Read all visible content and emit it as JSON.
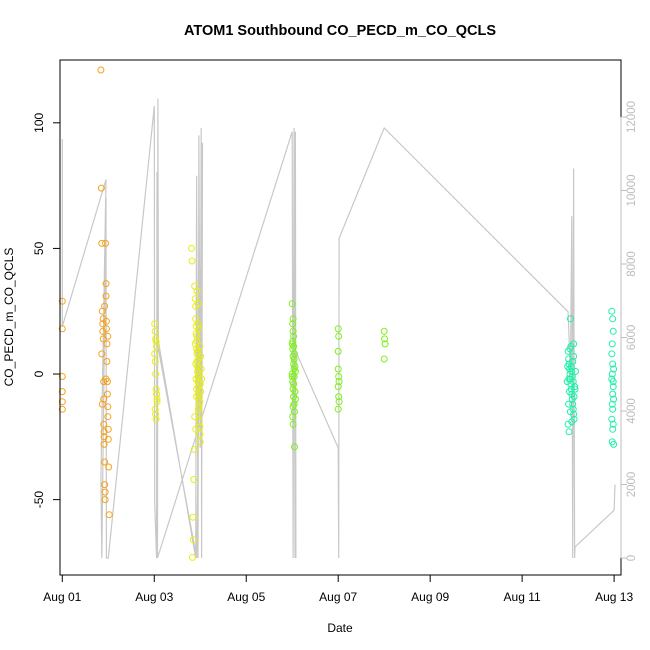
{
  "chart_data": {
    "type": "scatter",
    "title": "ATOM1 Southbound CO_PECD_m_CO_QCLS",
    "xlabel": "Date",
    "ylabel": "CO_PECD_m_CO_QCLS",
    "x_unit": "days in August (Aug 01 = 1)",
    "xlim": [
      0.95,
      13.15
    ],
    "ylim": [
      -80,
      125
    ],
    "x_ticks": [
      {
        "value": 1,
        "label": "Aug 01"
      },
      {
        "value": 3,
        "label": "Aug 03"
      },
      {
        "value": 5,
        "label": "Aug 05"
      },
      {
        "value": 7,
        "label": "Aug 07"
      },
      {
        "value": 9,
        "label": "Aug 09"
      },
      {
        "value": 11,
        "label": "Aug 11"
      },
      {
        "value": 13,
        "label": "Aug 13"
      }
    ],
    "y_ticks": [
      -50,
      0,
      50,
      100
    ],
    "y_tick_labels": [
      "-50",
      "0",
      "50",
      "100"
    ],
    "secondary_axis": {
      "side": "right",
      "ticks": [
        0,
        2000,
        4000,
        6000,
        8000,
        10000,
        12000
      ],
      "tick_labels": [
        "0",
        "2000",
        "4000",
        "6000",
        "8000",
        "10000",
        "12000"
      ],
      "color": "#bebebe"
    },
    "grid": false,
    "point_style": "open-circle",
    "series": [
      {
        "color": "#f7a21b",
        "points": [
          [
            1.0,
            29
          ],
          [
            1.0,
            18
          ],
          [
            1.0,
            -1
          ],
          [
            1.0,
            -7
          ],
          [
            1.0,
            -11
          ],
          [
            1.0,
            -14
          ],
          [
            1.84,
            121
          ],
          [
            1.85,
            74
          ],
          [
            1.86,
            52
          ],
          [
            1.87,
            25
          ],
          [
            1.88,
            20
          ],
          [
            1.88,
            17
          ],
          [
            1.89,
            14
          ],
          [
            1.89,
            22
          ],
          [
            1.9,
            -3
          ],
          [
            1.9,
            -10
          ],
          [
            1.9,
            -20
          ],
          [
            1.91,
            -23
          ],
          [
            1.91,
            -25
          ],
          [
            1.91,
            -28
          ],
          [
            1.92,
            -35
          ],
          [
            1.92,
            -44
          ],
          [
            1.93,
            -47
          ],
          [
            1.93,
            -50
          ],
          [
            1.94,
            52
          ],
          [
            1.95,
            36
          ],
          [
            1.95,
            31
          ],
          [
            1.96,
            21
          ],
          [
            1.96,
            18
          ],
          [
            1.97,
            12
          ],
          [
            1.97,
            5
          ],
          [
            1.98,
            -3
          ],
          [
            1.98,
            -8
          ],
          [
            1.99,
            -13
          ],
          [
            1.99,
            -17
          ],
          [
            2.0,
            -22
          ],
          [
            2.0,
            -26
          ],
          [
            2.01,
            -37
          ],
          [
            2.02,
            -56
          ],
          [
            1.86,
            8
          ],
          [
            1.87,
            -12
          ],
          [
            1.92,
            27
          ],
          [
            1.95,
            -2
          ],
          [
            1.99,
            15
          ]
        ]
      },
      {
        "color": "#e8ee10",
        "points": [
          [
            3.01,
            20
          ],
          [
            3.02,
            17
          ],
          [
            3.03,
            14
          ],
          [
            3.04,
            13
          ],
          [
            3.05,
            11
          ],
          [
            3.02,
            5
          ],
          [
            3.03,
            0
          ],
          [
            3.04,
            -6
          ],
          [
            3.05,
            -8
          ],
          [
            3.06,
            -11
          ],
          [
            3.02,
            -14
          ],
          [
            3.03,
            -16
          ],
          [
            3.04,
            -18
          ],
          [
            3.06,
            -10
          ],
          [
            3.01,
            8
          ],
          [
            3.81,
            50
          ],
          [
            3.82,
            45
          ],
          [
            3.84,
            -57
          ],
          [
            3.85,
            -66
          ],
          [
            3.83,
            -73
          ],
          [
            3.86,
            -42
          ],
          [
            3.87,
            -30
          ],
          [
            3.88,
            35
          ],
          [
            3.89,
            30
          ],
          [
            3.9,
            27
          ],
          [
            3.9,
            22
          ],
          [
            3.91,
            19
          ],
          [
            3.91,
            16
          ],
          [
            3.92,
            13
          ],
          [
            3.92,
            10
          ],
          [
            3.93,
            8
          ],
          [
            3.93,
            5
          ],
          [
            3.94,
            3
          ],
          [
            3.94,
            1
          ],
          [
            3.95,
            -1
          ],
          [
            3.95,
            -3
          ],
          [
            3.96,
            -5
          ],
          [
            3.96,
            -8
          ],
          [
            3.97,
            -10
          ],
          [
            3.97,
            -13
          ],
          [
            3.98,
            -16
          ],
          [
            3.98,
            -19
          ],
          [
            3.99,
            -21
          ],
          [
            3.99,
            -24
          ],
          [
            4.0,
            -27
          ],
          [
            3.89,
            12
          ],
          [
            3.9,
            4
          ],
          [
            3.91,
            -2
          ],
          [
            3.92,
            -6
          ],
          [
            3.93,
            15
          ],
          [
            3.94,
            9
          ],
          [
            3.95,
            20
          ],
          [
            3.96,
            -14
          ],
          [
            3.97,
            6
          ],
          [
            3.98,
            0
          ],
          [
            3.99,
            11
          ],
          [
            4.0,
            -4
          ],
          [
            4.01,
            -7
          ],
          [
            4.02,
            2
          ],
          [
            3.93,
            33
          ],
          [
            3.95,
            28
          ],
          [
            3.97,
            18
          ],
          [
            3.99,
            -11
          ],
          [
            4.01,
            7
          ],
          [
            4.03,
            -2
          ],
          [
            3.88,
            -17
          ],
          [
            3.9,
            -22
          ],
          [
            3.92,
            -9
          ]
        ]
      },
      {
        "color": "#7cf218",
        "points": [
          [
            6.0,
            28
          ],
          [
            6.01,
            20
          ],
          [
            6.02,
            17
          ],
          [
            6.03,
            15
          ],
          [
            6.0,
            12
          ],
          [
            6.01,
            10
          ],
          [
            6.02,
            7
          ],
          [
            6.03,
            4
          ],
          [
            6.04,
            2
          ],
          [
            6.0,
            -1
          ],
          [
            6.01,
            -3
          ],
          [
            6.02,
            -6
          ],
          [
            6.03,
            -9
          ],
          [
            6.04,
            -12
          ],
          [
            6.05,
            -15
          ],
          [
            6.01,
            -17
          ],
          [
            6.02,
            -20
          ],
          [
            6.05,
            -29
          ],
          [
            6.0,
            0
          ],
          [
            6.03,
            -4
          ],
          [
            6.04,
            6
          ],
          [
            6.01,
            13
          ],
          [
            6.02,
            -13
          ],
          [
            6.03,
            11
          ],
          [
            6.04,
            -1
          ],
          [
            6.06,
            3
          ],
          [
            6.06,
            -7
          ],
          [
            6.05,
            8
          ],
          [
            6.07,
            -10
          ],
          [
            6.07,
            1
          ],
          [
            6.02,
            22
          ],
          [
            7.0,
            18
          ],
          [
            7.01,
            15
          ],
          [
            7.0,
            9
          ],
          [
            7.0,
            2
          ],
          [
            7.01,
            -1
          ],
          [
            7.0,
            -5
          ],
          [
            7.01,
            -9
          ],
          [
            7.02,
            -11
          ],
          [
            7.0,
            -14
          ],
          [
            7.02,
            -3
          ],
          [
            8.0,
            17
          ],
          [
            8.01,
            14
          ],
          [
            8.02,
            12
          ],
          [
            8.0,
            6
          ]
        ]
      },
      {
        "color": "#22f0a8",
        "points": [
          [
            12.05,
            22
          ],
          [
            12.0,
            9
          ],
          [
            12.01,
            6
          ],
          [
            12.02,
            4
          ],
          [
            12.03,
            2
          ],
          [
            12.04,
            0
          ],
          [
            12.05,
            -2
          ],
          [
            12.06,
            -4
          ],
          [
            12.07,
            -6
          ],
          [
            12.08,
            -8
          ],
          [
            12.09,
            -10
          ],
          [
            12.1,
            -12
          ],
          [
            12.11,
            -14
          ],
          [
            12.12,
            -16
          ],
          [
            12.13,
            -18
          ],
          [
            12.0,
            -20
          ],
          [
            12.02,
            -23
          ],
          [
            12.01,
            -12
          ],
          [
            12.03,
            -7
          ],
          [
            12.04,
            10
          ],
          [
            12.06,
            11
          ],
          [
            12.07,
            3
          ],
          [
            12.08,
            1
          ],
          [
            12.09,
            -1
          ],
          [
            12.1,
            5
          ],
          [
            12.11,
            -3
          ],
          [
            12.12,
            7
          ],
          [
            12.13,
            -9
          ],
          [
            12.14,
            -5
          ],
          [
            12.02,
            -2
          ],
          [
            12.05,
            -15
          ],
          [
            12.08,
            -19
          ],
          [
            12.12,
            12
          ],
          [
            12.15,
            -6
          ],
          [
            12.16,
            1
          ],
          [
            11.98,
            -3
          ],
          [
            11.99,
            3
          ],
          [
            12.95,
            25
          ],
          [
            12.97,
            22
          ],
          [
            12.98,
            17
          ],
          [
            12.96,
            12
          ],
          [
            12.95,
            8
          ],
          [
            12.97,
            4
          ],
          [
            12.96,
            0
          ],
          [
            12.95,
            -2
          ],
          [
            12.98,
            -5
          ],
          [
            12.97,
            -8
          ],
          [
            12.99,
            -10
          ],
          [
            12.96,
            -12
          ],
          [
            12.95,
            -18
          ],
          [
            12.98,
            -20
          ],
          [
            12.97,
            -22
          ],
          [
            12.96,
            -27
          ],
          [
            12.99,
            -28
          ],
          [
            12.98,
            -3
          ],
          [
            12.99,
            2
          ],
          [
            12.97,
            -14
          ]
        ]
      }
    ],
    "secondary_series": {
      "color": "#c8c8c8",
      "description_kind": "line",
      "x": [
        1.0,
        1.0,
        1.95,
        1.84,
        1.86,
        1.95,
        1.96,
        2.0,
        3.0,
        3.01,
        3.05,
        3.06,
        3.07,
        3.08,
        3.09,
        3.9,
        3.92,
        3.95,
        3.97,
        4.0,
        4.02,
        4.03,
        4.05,
        3.92,
        3.06,
        3.07,
        6.0,
        6.02,
        6.04,
        6.06,
        6.07,
        6.08,
        6.05,
        7.0,
        7.01,
        7.02,
        8.0,
        12.0,
        12.05,
        12.08,
        12.1,
        12.12,
        12.14,
        12.15,
        13.0,
        13.02
      ],
      "y": [
        11400,
        6300,
        10300,
        2200,
        0,
        9800,
        0,
        0,
        12300,
        1500,
        0,
        10500,
        0,
        12500,
        5900,
        0,
        10400,
        0,
        11500,
        3000,
        11700,
        0,
        11300,
        0,
        5900,
        0,
        11600,
        0,
        11700,
        0,
        11600,
        0,
        5700,
        3000,
        0,
        8700,
        11700,
        6700,
        5000,
        9300,
        0,
        10600,
        0,
        300,
        1300,
        2000
      ]
    }
  }
}
